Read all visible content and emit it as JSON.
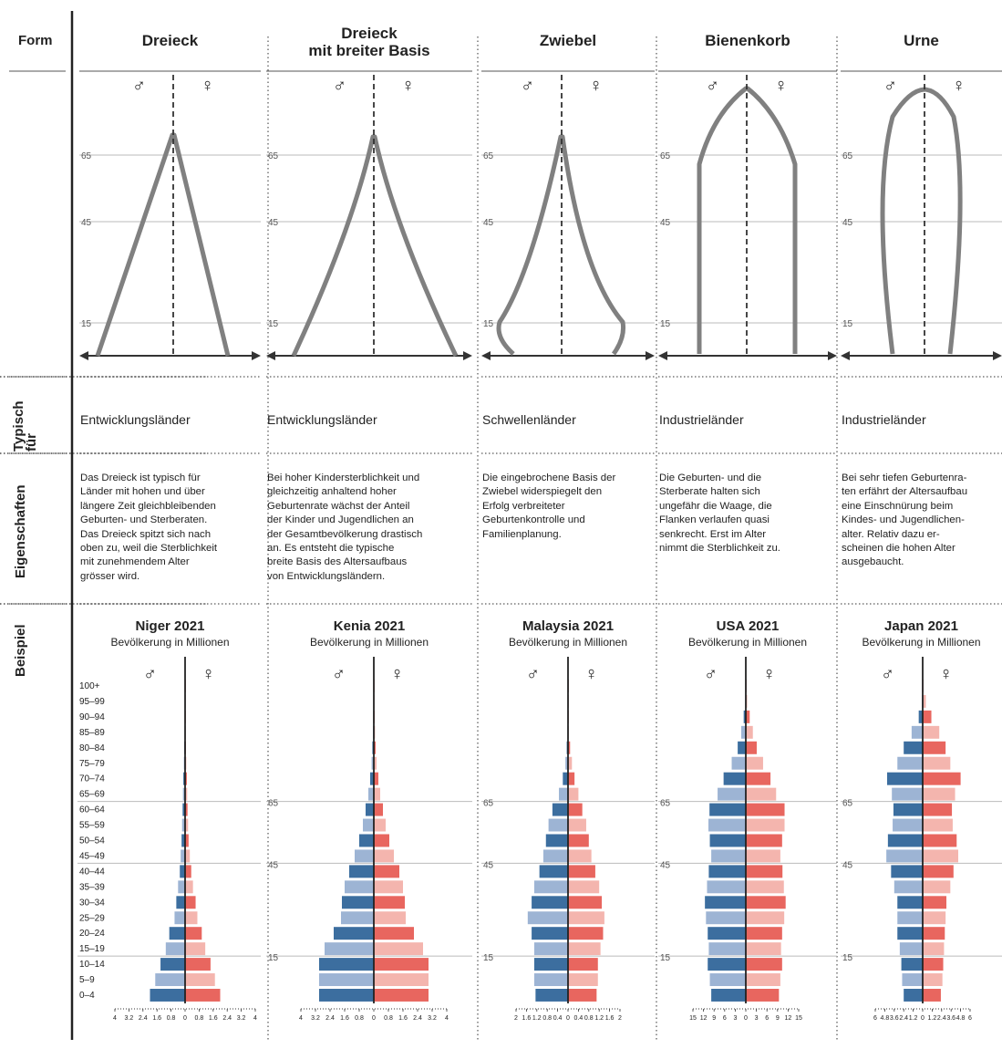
{
  "row_labels": {
    "form": "Form",
    "typisch": "Typisch für",
    "eigenschaften": "Eigenschaften",
    "beispiel": "Beispiel"
  },
  "columns": [
    {
      "title_lines": [
        "Dreieck"
      ],
      "typisch": "Entwicklungsländer",
      "desc": [
        "Das Dreieck ist typisch für",
        "Länder mit hohen und über",
        "längere Zeit gleichbleibenden",
        "Geburten- und Sterberaten.",
        "Das Dreieck spitzt sich nach",
        "oben zu, weil die Sterblichkeit",
        "mit zunehmendem Alter",
        "grösser wird."
      ]
    },
    {
      "title_lines": [
        "Dreieck",
        "mit breiter Basis"
      ],
      "typisch": "Entwicklungsländer",
      "desc": [
        "Bei hoher Kindersterblichkeit und",
        "gleichzeitig anhaltend hoher",
        "Geburtenrate wächst der Anteil",
        "der Kinder und Jugendlichen an",
        "der Gesamtbevölkerung drastisch",
        "an. Es entsteht die typische",
        "breite Basis des Altersaufbaus",
        "von Entwicklungsländern."
      ]
    },
    {
      "title_lines": [
        "Zwiebel"
      ],
      "typisch": "Schwellenländer",
      "desc": [
        "Die eingebrochene Basis der",
        "Zwiebel widerspiegelt den",
        "Erfolg verbreiteter",
        "Geburtenkontrolle und",
        "Familienplanung."
      ]
    },
    {
      "title_lines": [
        "Bienenkorb"
      ],
      "typisch": "Industrieländer",
      "desc": [
        "Die Geburten- und die",
        "Sterberate halten sich",
        "ungefähr die Waage, die",
        "Flanken verlaufen quasi",
        "senkrecht. Erst im Alter",
        "nimmt die Sterblichkeit zu."
      ]
    },
    {
      "title_lines": [
        "Urne"
      ],
      "typisch": "Industrieländer",
      "desc": [
        "Bei sehr tiefen Geburtenra-",
        "ten erfährt der Altersaufbau",
        "eine Einschnürung beim",
        "Kindes- und Jugendlichen-",
        "alter. Relativ dazu er-",
        "scheinen die hohen Alter",
        "ausgebaucht."
      ]
    }
  ],
  "shape_labels": {
    "male": "♂",
    "female": "♀",
    "ages": [
      "65",
      "45",
      "15"
    ]
  },
  "chart_data": [
    {
      "type": "bar",
      "orientation": "horizontal-pyramid",
      "title": "Niger 2021",
      "subtitle": "Bevölkerung in Millionen",
      "categories": [
        "100+",
        "95–99",
        "90–94",
        "85–89",
        "80–84",
        "75–79",
        "70–74",
        "65–69",
        "60–64",
        "55–59",
        "50–54",
        "45–49",
        "40–44",
        "35–39",
        "30–34",
        "25–29",
        "20–24",
        "15–19",
        "10–14",
        "5–9",
        "0–4"
      ],
      "series": [
        {
          "name": "♂",
          "values": [
            0.01,
            0.01,
            0.02,
            0.03,
            0.05,
            0.07,
            0.1,
            0.12,
            0.14,
            0.17,
            0.2,
            0.25,
            0.3,
            0.4,
            0.5,
            0.6,
            0.9,
            1.1,
            1.4,
            1.7,
            2.0
          ]
        },
        {
          "name": "♀",
          "values": [
            0.01,
            0.01,
            0.02,
            0.03,
            0.05,
            0.07,
            0.1,
            0.12,
            0.14,
            0.17,
            0.2,
            0.27,
            0.35,
            0.45,
            0.6,
            0.7,
            0.95,
            1.15,
            1.45,
            1.7,
            2.0
          ]
        }
      ],
      "xlim": [
        -4,
        4
      ],
      "ticks": [
        "4",
        "3.2",
        "2.4",
        "1.6",
        "0.8",
        "0",
        "0.8",
        "1.6",
        "2.4",
        "3.2",
        "4"
      ],
      "age_marks": [
        "65",
        "45",
        "15"
      ]
    },
    {
      "type": "bar",
      "orientation": "horizontal-pyramid",
      "title": "Kenia 2021",
      "subtitle": "Bevölkerung in Millionen",
      "categories": [
        "100+",
        "95–99",
        "90–94",
        "85–89",
        "80–84",
        "75–79",
        "70–74",
        "65–69",
        "60–64",
        "55–59",
        "50–54",
        "45–49",
        "40–44",
        "35–39",
        "30–34",
        "25–29",
        "20–24",
        "15–19",
        "10–14",
        "5–9",
        "0–4"
      ],
      "series": [
        {
          "name": "♂",
          "values": [
            0.01,
            0.02,
            0.03,
            0.05,
            0.08,
            0.12,
            0.2,
            0.3,
            0.45,
            0.6,
            0.8,
            1.05,
            1.35,
            1.6,
            1.75,
            1.8,
            2.2,
            2.7,
            3.0,
            3.0,
            3.0
          ]
        },
        {
          "name": "♀",
          "values": [
            0.02,
            0.03,
            0.05,
            0.07,
            0.1,
            0.15,
            0.25,
            0.35,
            0.5,
            0.65,
            0.85,
            1.1,
            1.4,
            1.6,
            1.7,
            1.75,
            2.2,
            2.7,
            3.0,
            3.0,
            3.0
          ]
        }
      ],
      "xlim": [
        -4,
        4
      ],
      "ticks": [
        "4",
        "3.2",
        "2.4",
        "1.6",
        "0.8",
        "0",
        "0.8",
        "1.6",
        "2.4",
        "3.2",
        "4"
      ],
      "age_marks": [
        "65",
        "45",
        "15"
      ]
    },
    {
      "type": "bar",
      "orientation": "horizontal-pyramid",
      "title": "Malaysia 2021",
      "subtitle": "Bevölkerung in Millionen",
      "categories": [
        "100+",
        "95–99",
        "90–94",
        "85–89",
        "80–84",
        "75–79",
        "70–74",
        "65–69",
        "60–64",
        "55–59",
        "50–54",
        "45–49",
        "40–44",
        "35–39",
        "30–34",
        "25–29",
        "20–24",
        "15–19",
        "10–14",
        "5–9",
        "0–4"
      ],
      "series": [
        {
          "name": "♂",
          "values": [
            0.0,
            0.0,
            0.01,
            0.02,
            0.05,
            0.1,
            0.2,
            0.35,
            0.6,
            0.75,
            0.85,
            0.95,
            1.1,
            1.3,
            1.4,
            1.55,
            1.4,
            1.3,
            1.3,
            1.3,
            1.25
          ]
        },
        {
          "name": "♀",
          "values": [
            0.0,
            0.0,
            0.01,
            0.03,
            0.08,
            0.15,
            0.25,
            0.4,
            0.55,
            0.7,
            0.8,
            0.9,
            1.05,
            1.2,
            1.3,
            1.4,
            1.35,
            1.25,
            1.15,
            1.15,
            1.1
          ]
        }
      ],
      "xlim": [
        -2,
        2
      ],
      "ticks": [
        "2",
        "1.6",
        "1.2",
        "0.8",
        "0.4",
        "0",
        "0.4",
        "0.8",
        "1.2",
        "1.6",
        "2"
      ],
      "age_marks": [
        "65",
        "45",
        "15"
      ]
    },
    {
      "type": "bar",
      "orientation": "horizontal-pyramid",
      "title": "USA 2021",
      "subtitle": "Bevölkerung in Millionen",
      "categories": [
        "100+",
        "95–99",
        "90–94",
        "85–89",
        "80–84",
        "75–79",
        "70–74",
        "65–69",
        "60–64",
        "55–59",
        "50–54",
        "45–49",
        "40–44",
        "35–39",
        "30–34",
        "25–29",
        "20–24",
        "15–19",
        "10–14",
        "5–9",
        "0–4"
      ],
      "series": [
        {
          "name": "♂",
          "values": [
            0.02,
            0.15,
            0.6,
            1.3,
            2.3,
            4.0,
            6.3,
            8.0,
            10.3,
            10.6,
            10.2,
            9.8,
            10.5,
            11.0,
            11.6,
            11.3,
            10.8,
            10.5,
            10.8,
            10.2,
            9.8
          ]
        },
        {
          "name": "♀",
          "values": [
            0.08,
            0.4,
            1.1,
            2.0,
            3.1,
            4.9,
            7.0,
            8.6,
            11.0,
            11.0,
            10.3,
            9.8,
            10.4,
            10.8,
            11.3,
            10.9,
            10.3,
            10.0,
            10.3,
            9.8,
            9.4
          ]
        }
      ],
      "xlim": [
        -15,
        15
      ],
      "ticks": [
        "15",
        "12",
        "9",
        "6",
        "3",
        "0",
        "3",
        "6",
        "9",
        "12",
        "15"
      ],
      "age_marks": [
        "65",
        "45",
        "15"
      ]
    },
    {
      "type": "bar",
      "orientation": "horizontal-pyramid",
      "title": "Japan 2021",
      "subtitle": "Bevölkerung in Millionen",
      "categories": [
        "100+",
        "95–99",
        "90–94",
        "85–89",
        "80–84",
        "75–79",
        "70–74",
        "65–69",
        "60–64",
        "55–59",
        "50–54",
        "45–49",
        "40–44",
        "35–39",
        "30–34",
        "25–29",
        "20–24",
        "15–19",
        "10–14",
        "5–9",
        "0–4"
      ],
      "series": [
        {
          "name": "♂",
          "values": [
            0.01,
            0.1,
            0.5,
            1.4,
            2.4,
            3.2,
            4.5,
            3.9,
            3.7,
            3.8,
            4.4,
            4.6,
            4.0,
            3.6,
            3.2,
            3.2,
            3.2,
            2.9,
            2.7,
            2.6,
            2.4
          ]
        },
        {
          "name": "♀",
          "values": [
            0.07,
            0.4,
            1.1,
            2.1,
            2.9,
            3.5,
            4.8,
            4.1,
            3.7,
            3.8,
            4.3,
            4.5,
            3.9,
            3.5,
            3.0,
            2.9,
            2.8,
            2.7,
            2.6,
            2.5,
            2.3
          ]
        }
      ],
      "xlim": [
        -6,
        6
      ],
      "ticks": [
        "6",
        "4.8",
        "3.6",
        "2.4",
        "1.2",
        "0",
        "1.2",
        "2.4",
        "3.6",
        "4.8",
        "6"
      ],
      "age_marks": [
        "65",
        "45",
        "15"
      ]
    }
  ],
  "colors": {
    "male": "#3c6e9f",
    "male_light": "#9db4d4",
    "female": "#e8665f",
    "female_light": "#f4b5ae",
    "shape": "#808080"
  }
}
